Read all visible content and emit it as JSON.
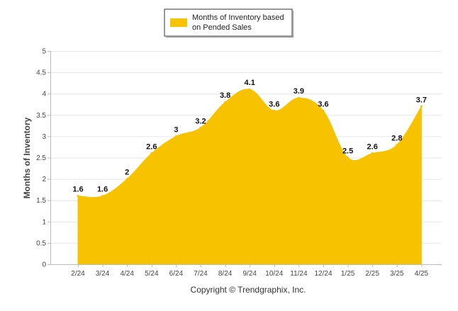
{
  "chart_data": {
    "type": "area",
    "title": "",
    "xlabel": "",
    "ylabel": "Months of Inventory",
    "categories": [
      "2/24",
      "3/24",
      "4/24",
      "5/24",
      "6/24",
      "7/24",
      "8/24",
      "9/24",
      "10/24",
      "11/24",
      "12/24",
      "1/25",
      "2/25",
      "3/25",
      "4/25"
    ],
    "series": [
      {
        "name": "Months of Inventory based on Pended Sales",
        "values": [
          1.6,
          1.6,
          2,
          2.6,
          3,
          3.2,
          3.8,
          4.1,
          3.6,
          3.9,
          3.6,
          2.5,
          2.6,
          2.8,
          3.7
        ]
      }
    ],
    "data_labels": [
      "1.6",
      "1.6",
      "2",
      "2.6",
      "3",
      "3.2",
      "3.8",
      "4.1",
      "3.6",
      "3.9",
      "3.6",
      "2.5",
      "2.6",
      "2.8",
      "3.7"
    ],
    "ylim": [
      0,
      5
    ],
    "yticks": [
      "0",
      "0.5",
      "1",
      "1.5",
      "2",
      "2.5",
      "3",
      "3.5",
      "4",
      "4.5",
      "5"
    ],
    "grid": true,
    "legend_position": "top-center",
    "colors": {
      "series": "#F7C200",
      "grid": "#E6E6E6",
      "axis": "#BBBBBB"
    },
    "footer": "Copyright © Trendgraphix, Inc."
  }
}
